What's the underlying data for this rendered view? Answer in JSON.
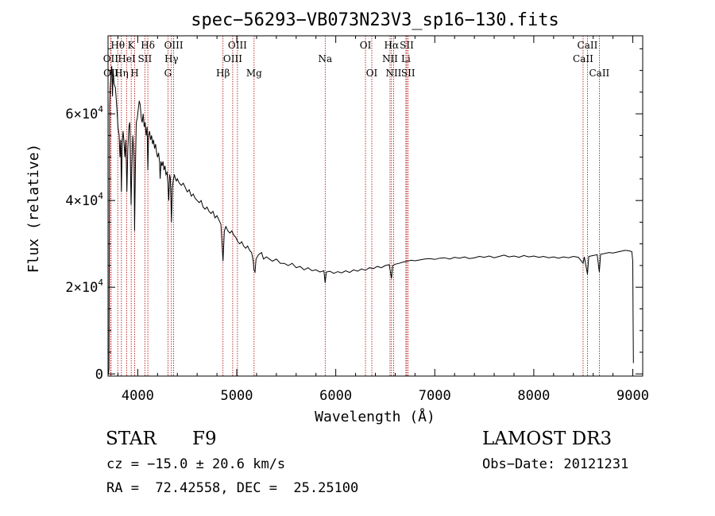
{
  "chart_data": {
    "type": "line",
    "title": "spec−56293−VB073N23V3_sp16−130.fits",
    "xlabel": "Wavelength (Å)",
    "ylabel": "Flux (relative)",
    "xlim": [
      3700,
      9100
    ],
    "ylim": [
      -500,
      78000
    ],
    "x_ticks": [
      4000,
      5000,
      6000,
      7000,
      8000,
      9000
    ],
    "y_ticks": [
      {
        "value": 0,
        "mantissa": "0",
        "exp": ""
      },
      {
        "value": 20000,
        "mantissa": "2×10",
        "exp": "4"
      },
      {
        "value": 40000,
        "mantissa": "4×10",
        "exp": "4"
      },
      {
        "value": 60000,
        "mantissa": "6×10",
        "exp": "4"
      }
    ],
    "line_color": "#b00000",
    "series": [
      {
        "name": "flux",
        "color": "#000000",
        "points": [
          [
            3705,
            50
          ],
          [
            3710,
            1200
          ],
          [
            3716,
            62000
          ],
          [
            3722,
            66000
          ],
          [
            3730,
            69000
          ],
          [
            3738,
            71000
          ],
          [
            3745,
            64000
          ],
          [
            3752,
            70000
          ],
          [
            3760,
            67000
          ],
          [
            3775,
            66000
          ],
          [
            3790,
            61000
          ],
          [
            3800,
            57000
          ],
          [
            3812,
            55000
          ],
          [
            3820,
            50000
          ],
          [
            3828,
            54000
          ],
          [
            3835,
            42000
          ],
          [
            3843,
            53000
          ],
          [
            3852,
            56000
          ],
          [
            3860,
            54000
          ],
          [
            3870,
            50000
          ],
          [
            3880,
            54000
          ],
          [
            3885,
            48000
          ],
          [
            3890,
            42000
          ],
          [
            3900,
            52000
          ],
          [
            3910,
            57000
          ],
          [
            3920,
            58000
          ],
          [
            3933,
            39000
          ],
          [
            3940,
            47000
          ],
          [
            3950,
            55000
          ],
          [
            3962,
            50000
          ],
          [
            3968,
            33000
          ],
          [
            3975,
            46000
          ],
          [
            3985,
            58000
          ],
          [
            3995,
            59000
          ],
          [
            4005,
            61000
          ],
          [
            4015,
            63000
          ],
          [
            4025,
            62000
          ],
          [
            4035,
            59000
          ],
          [
            4045,
            58000
          ],
          [
            4055,
            60000
          ],
          [
            4065,
            57000
          ],
          [
            4075,
            58000
          ],
          [
            4085,
            55000
          ],
          [
            4095,
            57000
          ],
          [
            4102,
            47000
          ],
          [
            4110,
            55000
          ],
          [
            4120,
            56000
          ],
          [
            4130,
            54000
          ],
          [
            4140,
            55000
          ],
          [
            4150,
            53000
          ],
          [
            4160,
            54000
          ],
          [
            4170,
            52000
          ],
          [
            4180,
            53000
          ],
          [
            4190,
            51000
          ],
          [
            4200,
            50000
          ],
          [
            4210,
            51000
          ],
          [
            4220,
            49000
          ],
          [
            4226,
            45000
          ],
          [
            4235,
            49000
          ],
          [
            4245,
            48000
          ],
          [
            4255,
            49000
          ],
          [
            4265,
            47000
          ],
          [
            4275,
            48000
          ],
          [
            4285,
            46000
          ],
          [
            4295,
            46500
          ],
          [
            4305,
            44000
          ],
          [
            4313,
            40000
          ],
          [
            4322,
            46000
          ],
          [
            4330,
            45000
          ],
          [
            4340,
            35000
          ],
          [
            4350,
            43000
          ],
          [
            4360,
            45000
          ],
          [
            4370,
            46000
          ],
          [
            4380,
            45000
          ],
          [
            4390,
            44500
          ],
          [
            4400,
            45000
          ],
          [
            4420,
            44000
          ],
          [
            4440,
            43500
          ],
          [
            4460,
            44000
          ],
          [
            4480,
            43000
          ],
          [
            4500,
            42000
          ],
          [
            4520,
            42500
          ],
          [
            4540,
            41000
          ],
          [
            4560,
            41500
          ],
          [
            4580,
            40500
          ],
          [
            4600,
            40000
          ],
          [
            4620,
            39500
          ],
          [
            4640,
            40000
          ],
          [
            4660,
            38500
          ],
          [
            4680,
            38000
          ],
          [
            4700,
            38500
          ],
          [
            4720,
            37500
          ],
          [
            4740,
            37000
          ],
          [
            4760,
            37500
          ],
          [
            4780,
            36000
          ],
          [
            4800,
            36500
          ],
          [
            4820,
            35500
          ],
          [
            4840,
            34500
          ],
          [
            4861,
            26000
          ],
          [
            4875,
            33000
          ],
          [
            4890,
            34000
          ],
          [
            4910,
            33000
          ],
          [
            4930,
            32500
          ],
          [
            4950,
            33000
          ],
          [
            4970,
            32000
          ],
          [
            4990,
            31500
          ],
          [
            5010,
            30500
          ],
          [
            5030,
            30000
          ],
          [
            5050,
            30500
          ],
          [
            5070,
            29500
          ],
          [
            5090,
            29000
          ],
          [
            5110,
            29500
          ],
          [
            5130,
            28500
          ],
          [
            5150,
            28000
          ],
          [
            5167,
            26000
          ],
          [
            5173,
            24000
          ],
          [
            5184,
            23500
          ],
          [
            5195,
            26500
          ],
          [
            5220,
            27500
          ],
          [
            5250,
            28000
          ],
          [
            5270,
            26500
          ],
          [
            5300,
            27000
          ],
          [
            5330,
            26500
          ],
          [
            5360,
            26000
          ],
          [
            5400,
            26500
          ],
          [
            5440,
            25500
          ],
          [
            5480,
            25500
          ],
          [
            5520,
            25000
          ],
          [
            5560,
            25500
          ],
          [
            5600,
            24500
          ],
          [
            5640,
            24800
          ],
          [
            5680,
            24000
          ],
          [
            5720,
            24500
          ],
          [
            5760,
            23800
          ],
          [
            5800,
            24000
          ],
          [
            5840,
            23500
          ],
          [
            5880,
            23800
          ],
          [
            5893,
            21000
          ],
          [
            5905,
            23500
          ],
          [
            5940,
            23700
          ],
          [
            5980,
            23200
          ],
          [
            6020,
            23600
          ],
          [
            6060,
            23300
          ],
          [
            6100,
            23800
          ],
          [
            6140,
            23400
          ],
          [
            6180,
            24000
          ],
          [
            6220,
            23700
          ],
          [
            6260,
            24200
          ],
          [
            6300,
            23900
          ],
          [
            6340,
            24500
          ],
          [
            6380,
            24300
          ],
          [
            6420,
            24800
          ],
          [
            6460,
            24500
          ],
          [
            6500,
            25000
          ],
          [
            6540,
            25200
          ],
          [
            6563,
            22000
          ],
          [
            6575,
            25000
          ],
          [
            6600,
            25300
          ],
          [
            6640,
            25500
          ],
          [
            6680,
            25800
          ],
          [
            6720,
            26000
          ],
          [
            6760,
            26200
          ],
          [
            6800,
            26100
          ],
          [
            6850,
            26300
          ],
          [
            6900,
            26500
          ],
          [
            6950,
            26600
          ],
          [
            7000,
            26400
          ],
          [
            7050,
            26700
          ],
          [
            7100,
            26800
          ],
          [
            7150,
            26500
          ],
          [
            7200,
            26900
          ],
          [
            7250,
            26700
          ],
          [
            7300,
            27000
          ],
          [
            7350,
            26600
          ],
          [
            7400,
            26800
          ],
          [
            7450,
            27100
          ],
          [
            7500,
            26900
          ],
          [
            7550,
            27200
          ],
          [
            7600,
            26800
          ],
          [
            7650,
            27100
          ],
          [
            7700,
            27400
          ],
          [
            7750,
            27000
          ],
          [
            7800,
            27200
          ],
          [
            7850,
            26900
          ],
          [
            7900,
            27300
          ],
          [
            7950,
            27000
          ],
          [
            8000,
            27200
          ],
          [
            8050,
            26900
          ],
          [
            8100,
            27100
          ],
          [
            8150,
            26800
          ],
          [
            8200,
            27000
          ],
          [
            8250,
            26700
          ],
          [
            8300,
            27000
          ],
          [
            8350,
            26800
          ],
          [
            8400,
            27100
          ],
          [
            8450,
            26900
          ],
          [
            8498,
            25500
          ],
          [
            8510,
            27000
          ],
          [
            8542,
            23000
          ],
          [
            8555,
            27100
          ],
          [
            8600,
            27300
          ],
          [
            8640,
            27500
          ],
          [
            8662,
            23500
          ],
          [
            8675,
            27600
          ],
          [
            8720,
            27800
          ],
          [
            8760,
            28000
          ],
          [
            8800,
            27900
          ],
          [
            8840,
            28100
          ],
          [
            8880,
            28300
          ],
          [
            8920,
            28500
          ],
          [
            8960,
            28400
          ],
          [
            8990,
            28200
          ],
          [
            9000,
            26000
          ],
          [
            9003,
            13000
          ],
          [
            9006,
            2500
          ]
        ]
      }
    ],
    "lines": [
      {
        "name": "OII",
        "wl": 3727,
        "row": 2
      },
      {
        "name": "OII",
        "wl": 3730,
        "row": 3
      },
      {
        "name": "Hθ",
        "wl": 3798,
        "row": 1
      },
      {
        "name": "Hη",
        "wl": 3835,
        "row": 3
      },
      {
        "name": "HeI",
        "wl": 3889,
        "row": 2
      },
      {
        "name": "K",
        "wl": 3934,
        "row": 1
      },
      {
        "name": "H",
        "wl": 3969,
        "row": 3
      },
      {
        "name": "SII",
        "wl": 4072,
        "row": 2
      },
      {
        "name": "Hδ",
        "wl": 4102,
        "row": 1
      },
      {
        "name": "G",
        "wl": 4305,
        "row": 3
      },
      {
        "name": "OIII",
        "wl": 4363,
        "row": 1
      },
      {
        "name": "Hγ",
        "wl": 4340,
        "row": 2
      },
      {
        "name": "Hβ",
        "wl": 4861,
        "row": 3
      },
      {
        "name": "OIII",
        "wl": 4959,
        "row": 2
      },
      {
        "name": "OIII",
        "wl": 5007,
        "row": 1
      },
      {
        "name": "Mg",
        "wl": 5175,
        "row": 3
      },
      {
        "name": "Na",
        "wl": 5893,
        "row": 2
      },
      {
        "name": "OI",
        "wl": 6300,
        "row": 1
      },
      {
        "name": "OI",
        "wl": 6364,
        "row": 3
      },
      {
        "name": "NII",
        "wl": 6548,
        "row": 2
      },
      {
        "name": "Hα",
        "wl": 6563,
        "row": 1
      },
      {
        "name": "NII",
        "wl": 6584,
        "row": 3
      },
      {
        "name": "SII",
        "wl": 6717,
        "row": 1
      },
      {
        "name": "Li",
        "wl": 6708,
        "row": 2
      },
      {
        "name": "SII",
        "wl": 6731,
        "row": 3
      },
      {
        "name": "CaII",
        "wl": 8498,
        "row": 2
      },
      {
        "name": "CaII",
        "wl": 8542,
        "row": 1
      },
      {
        "name": "CaII",
        "wl": 8662,
        "row": 3
      }
    ]
  },
  "info": {
    "class": "STAR",
    "subclass": "F9",
    "cz": "cz = −15.0 ± 20.6 km/s",
    "coords": "RA =  72.42558, DEC =  25.25100",
    "survey": "LAMOST DR3",
    "obs_date": "Obs−Date: 20121231"
  }
}
